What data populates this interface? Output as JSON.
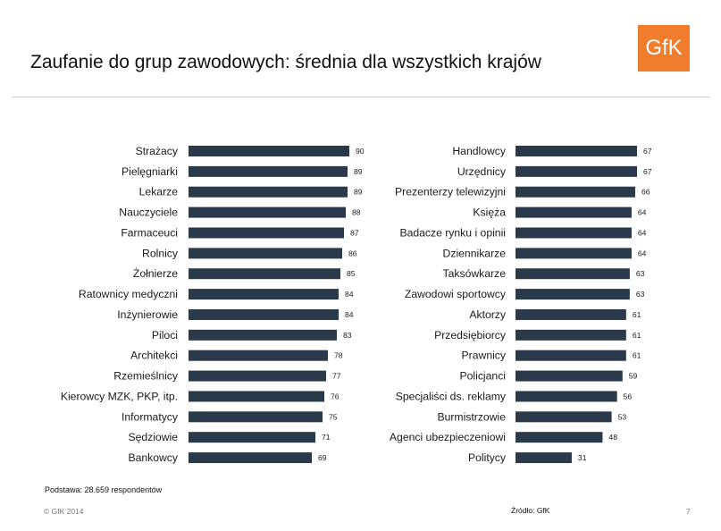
{
  "header": {
    "title": "Zaufanie do grup zawodowych: średnia dla wszystkich krajów",
    "logo_text": "GfK"
  },
  "colors": {
    "bar": "#2b3a4a",
    "logo": "#f07d2d"
  },
  "chart_data": [
    {
      "type": "bar",
      "orientation": "horizontal",
      "title": "",
      "xlim": [
        0,
        100
      ],
      "categories": [
        "Strażacy",
        "Pielęgniarki",
        "Lekarze",
        "Nauczyciele",
        "Farmaceuci",
        "Rolnicy",
        "Żołnierze",
        "Ratownicy medyczni",
        "Inżynierowie",
        "Piloci",
        "Architekci",
        "Rzemieślnicy",
        "Kierowcy MZK, PKP, itp.",
        "Informatycy",
        "Sędziowie",
        "Bankowcy"
      ],
      "values": [
        90,
        89,
        89,
        88,
        87,
        86,
        85,
        84,
        84,
        83,
        78,
        77,
        76,
        75,
        71,
        69
      ]
    },
    {
      "type": "bar",
      "orientation": "horizontal",
      "title": "",
      "xlim": [
        0,
        100
      ],
      "categories": [
        "Handlowcy",
        "Urzędnicy",
        "Prezenterzy telewizyjni",
        "Księża",
        "Badacze rynku i opinii",
        "Dziennikarze",
        "Taksówkarze",
        "Zawodowi sportowcy",
        "Aktorzy",
        "Przedsiębiorcy",
        "Prawnicy",
        "Policjanci",
        "Specjaliści ds. reklamy",
        "Burmistrzowie",
        "Agenci ubezpieczeniowi",
        "Politycy"
      ],
      "values": [
        67,
        67,
        66,
        64,
        64,
        64,
        63,
        63,
        61,
        61,
        61,
        59,
        56,
        53,
        48,
        31
      ]
    }
  ],
  "footer": {
    "basis": "Podstawa: 28.659 respondentów",
    "copyright": "© GfK 2014",
    "source": "Źródło: GfK",
    "page": "7"
  }
}
